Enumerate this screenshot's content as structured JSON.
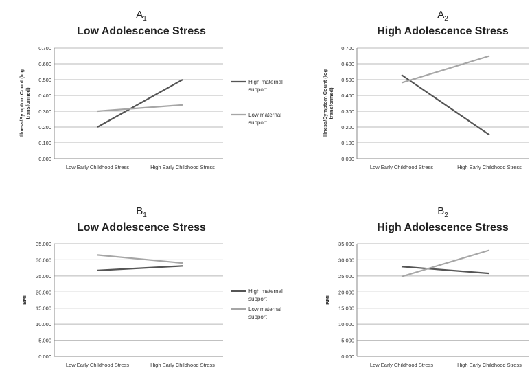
{
  "colors": {
    "high_support": "#555555",
    "low_support": "#a6a6a6",
    "grid": "#b8b8b8"
  },
  "legend": {
    "high_label_1": "High maternal",
    "high_label_2": "support",
    "low_label_1": "Low maternal",
    "low_label_2": "support"
  },
  "chart_data": [
    {
      "type": "line",
      "panel_letter": "A",
      "panel_subscript": "1",
      "title": "Low Adolescence Stress",
      "ylabel_1": "Illness/Symptom Count (log",
      "ylabel_2": "transformed)",
      "categories": [
        "Low Early Childhood Stress",
        "High Early Childhood Stress"
      ],
      "yticks": [
        "0.000",
        "0.100",
        "0.200",
        "0.300",
        "0.400",
        "0.500",
        "0.600",
        "0.700"
      ],
      "ylim": [
        0,
        0.7
      ],
      "grid": true,
      "legend_position": "right",
      "series": [
        {
          "name": "High maternal support",
          "values": [
            0.2,
            0.5
          ]
        },
        {
          "name": "Low maternal support",
          "values": [
            0.3,
            0.34
          ]
        }
      ]
    },
    {
      "type": "line",
      "panel_letter": "A",
      "panel_subscript": "2",
      "title": "High Adolescence Stress",
      "ylabel_1": "Illness/Symptom Count (log",
      "ylabel_2": "transformed)",
      "categories": [
        "Low Early Childhood Stress",
        "High Early Childhood Stress"
      ],
      "yticks": [
        "0.000",
        "0.100",
        "0.200",
        "0.300",
        "0.400",
        "0.500",
        "0.600",
        "0.700"
      ],
      "ylim": [
        0,
        0.7
      ],
      "grid": true,
      "legend_position": "none",
      "series": [
        {
          "name": "High maternal support",
          "values": [
            0.53,
            0.15
          ]
        },
        {
          "name": "Low maternal support",
          "values": [
            0.48,
            0.65
          ]
        }
      ]
    },
    {
      "type": "line",
      "panel_letter": "B",
      "panel_subscript": "1",
      "title": "Low Adolescence Stress",
      "ylabel_1": "BMI",
      "ylabel_2": "",
      "categories": [
        "Low Early Childhood Stress",
        "High Early Childhood Stress"
      ],
      "yticks": [
        "0.000",
        "5.000",
        "10.000",
        "15.000",
        "20.000",
        "25.000",
        "30.000",
        "35.000"
      ],
      "ylim": [
        0,
        35
      ],
      "grid": true,
      "legend_position": "right",
      "series": [
        {
          "name": "High maternal support",
          "values": [
            26.7,
            28.1
          ]
        },
        {
          "name": "Low maternal support",
          "values": [
            31.5,
            29.0
          ]
        }
      ]
    },
    {
      "type": "line",
      "panel_letter": "B",
      "panel_subscript": "2",
      "title": "High Adolescence Stress",
      "ylabel_1": "BMI",
      "ylabel_2": "",
      "categories": [
        "Low Early Childhood Stress",
        "High Early Childhood Stress"
      ],
      "yticks": [
        "0.000",
        "5.000",
        "10.000",
        "15.000",
        "20.000",
        "25.000",
        "30.000",
        "35.000"
      ],
      "ylim": [
        0,
        35
      ],
      "grid": true,
      "legend_position": "none",
      "series": [
        {
          "name": "High maternal support",
          "values": [
            27.9,
            25.8
          ]
        },
        {
          "name": "Low maternal support",
          "values": [
            24.8,
            33.0
          ]
        }
      ]
    }
  ]
}
